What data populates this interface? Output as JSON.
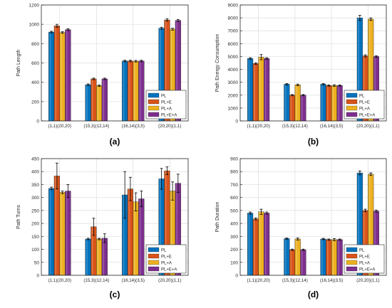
{
  "colors": {
    "series": [
      "#0072BD",
      "#D95319",
      "#EDB120",
      "#7E2F8E"
    ],
    "axis": "#262626",
    "grid": "#dddddd",
    "panel_bg": "#ffffff",
    "error_bar": "#000000"
  },
  "chart_data": [
    {
      "type": "bar",
      "panel_label": "(a)",
      "title": "",
      "xlabel": "",
      "ylabel": "Path Length",
      "categories": [
        "(1,1)(20,20)",
        "(15,3)(12,14)",
        "(16,14)(3,5)",
        "(20,20)(1,1)"
      ],
      "ylim": [
        0,
        1200
      ],
      "yticks": [
        0,
        200,
        400,
        600,
        800,
        1000,
        1200
      ],
      "grid": true,
      "legend_position": "bottom-right",
      "series": [
        {
          "name": "PL",
          "values": [
            920,
            375,
            620,
            960
          ],
          "errors": [
            8,
            8,
            8,
            10
          ]
        },
        {
          "name": "PL+E",
          "values": [
            985,
            435,
            620,
            1045
          ],
          "errors": [
            15,
            8,
            8,
            12
          ]
        },
        {
          "name": "PL+A",
          "values": [
            915,
            365,
            618,
            950
          ],
          "errors": [
            8,
            8,
            8,
            10
          ]
        },
        {
          "name": "PL+E+A",
          "values": [
            945,
            435,
            620,
            1040
          ],
          "errors": [
            10,
            8,
            8,
            10
          ]
        }
      ]
    },
    {
      "type": "bar",
      "panel_label": "(b)",
      "title": "",
      "xlabel": "",
      "ylabel": "Path Energy Consumption",
      "categories": [
        "(1,1)(20,20)",
        "(15,3)(12,14)",
        "(16,14)(3,5)",
        "(20,20)(1,1)"
      ],
      "ylim": [
        0,
        9000
      ],
      "yticks": [
        0,
        1000,
        2000,
        3000,
        4000,
        5000,
        6000,
        7000,
        8000,
        9000
      ],
      "grid": true,
      "legend_position": "bottom-right",
      "series": [
        {
          "name": "PL",
          "values": [
            4850,
            2850,
            2850,
            8000
          ],
          "errors": [
            60,
            50,
            50,
            200
          ]
        },
        {
          "name": "PL+E",
          "values": [
            4450,
            2000,
            2750,
            5050
          ],
          "errors": [
            60,
            50,
            50,
            80
          ]
        },
        {
          "name": "PL+A",
          "values": [
            4950,
            2800,
            2750,
            7900
          ],
          "errors": [
            200,
            60,
            60,
            100
          ]
        },
        {
          "name": "PL+E+A",
          "values": [
            4850,
            2000,
            2750,
            5000
          ],
          "errors": [
            60,
            50,
            50,
            60
          ]
        }
      ]
    },
    {
      "type": "bar",
      "panel_label": "(c)",
      "title": "",
      "xlabel": "",
      "ylabel": "Path Turns",
      "categories": [
        "(1,1)(20,20)",
        "(15,3)(12,14)",
        "(16,14)(3,5)",
        "(20,20)(1,1)"
      ],
      "ylim": [
        0,
        450
      ],
      "yticks": [
        0,
        50,
        100,
        150,
        200,
        250,
        300,
        350,
        400,
        450
      ],
      "grid": true,
      "legend_position": "bottom-right",
      "series": [
        {
          "name": "PL",
          "values": [
            335,
            140,
            310,
            372
          ],
          "errors": [
            5,
            3,
            90,
            40
          ]
        },
        {
          "name": "PL+E",
          "values": [
            383,
            187,
            333,
            403
          ],
          "errors": [
            50,
            33,
            45,
            15
          ]
        },
        {
          "name": "PL+A",
          "values": [
            320,
            140,
            283,
            325
          ],
          "errors": [
            5,
            3,
            35,
            35
          ]
        },
        {
          "name": "PL+E+A",
          "values": [
            325,
            143,
            295,
            355
          ],
          "errors": [
            25,
            17,
            30,
            35
          ]
        }
      ]
    },
    {
      "type": "bar",
      "panel_label": "(d)",
      "title": "",
      "xlabel": "",
      "ylabel": "Path Duration",
      "categories": [
        "(1,1)(20,20)",
        "(15,3)(12,14)",
        "(16,14)(3,5)",
        "(20,20)(1,1)"
      ],
      "ylim": [
        0,
        900
      ],
      "yticks": [
        0,
        100,
        200,
        300,
        400,
        500,
        600,
        700,
        800,
        900
      ],
      "grid": true,
      "legend_position": "bottom-right",
      "series": [
        {
          "name": "PL",
          "values": [
            480,
            283,
            280,
            790
          ],
          "errors": [
            8,
            5,
            5,
            15
          ]
        },
        {
          "name": "PL+E",
          "values": [
            435,
            197,
            275,
            500
          ],
          "errors": [
            8,
            5,
            5,
            10
          ]
        },
        {
          "name": "PL+A",
          "values": [
            490,
            280,
            275,
            780
          ],
          "errors": [
            20,
            8,
            8,
            10
          ]
        },
        {
          "name": "PL+E+A",
          "values": [
            480,
            197,
            275,
            495
          ],
          "errors": [
            8,
            5,
            5,
            8
          ]
        }
      ]
    }
  ]
}
